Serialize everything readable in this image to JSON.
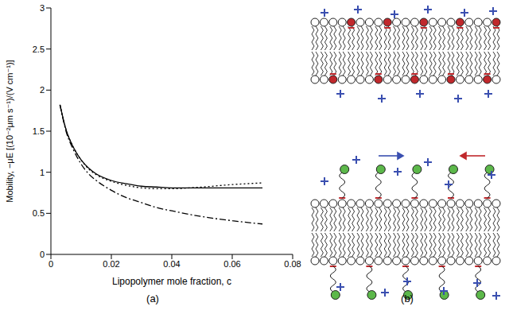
{
  "chart_data": {
    "type": "line",
    "x_label": "Lipopolymer mole fraction, c",
    "y_label": "Mobility, −μE [(10⁻²μm s⁻¹)/(V cm⁻¹)]",
    "x": [
      0.003,
      0.005,
      0.0075,
      0.01,
      0.0125,
      0.015,
      0.02,
      0.025,
      0.03,
      0.035,
      0.04,
      0.05,
      0.06,
      0.07
    ],
    "series": [
      {
        "color": "#000000",
        "line_style": "solid",
        "values": [
          1.82,
          1.52,
          1.3,
          1.15,
          1.05,
          0.98,
          0.9,
          0.86,
          0.83,
          0.82,
          0.81,
          0.81,
          0.81,
          0.81
        ]
      },
      {
        "color": "#000000",
        "line_style": "dotted",
        "values": [
          1.82,
          1.52,
          1.3,
          1.15,
          1.04,
          0.97,
          0.89,
          0.84,
          0.81,
          0.8,
          0.8,
          0.82,
          0.85,
          0.87
        ]
      },
      {
        "color": "#000000",
        "line_style": "dashdot",
        "values": [
          1.82,
          1.5,
          1.27,
          1.1,
          0.98,
          0.9,
          0.78,
          0.69,
          0.63,
          0.57,
          0.53,
          0.46,
          0.41,
          0.37
        ]
      }
    ],
    "xlim": [
      0,
      0.08
    ],
    "xticks": [
      0,
      0.02,
      0.04,
      0.06,
      0.08
    ],
    "ylim": [
      0,
      3
    ],
    "yticks": [
      0,
      0.5,
      1,
      1.5,
      2,
      2.5,
      3
    ],
    "grid": false
  },
  "panel_labels": [
    "(a)",
    "(b)"
  ]
}
